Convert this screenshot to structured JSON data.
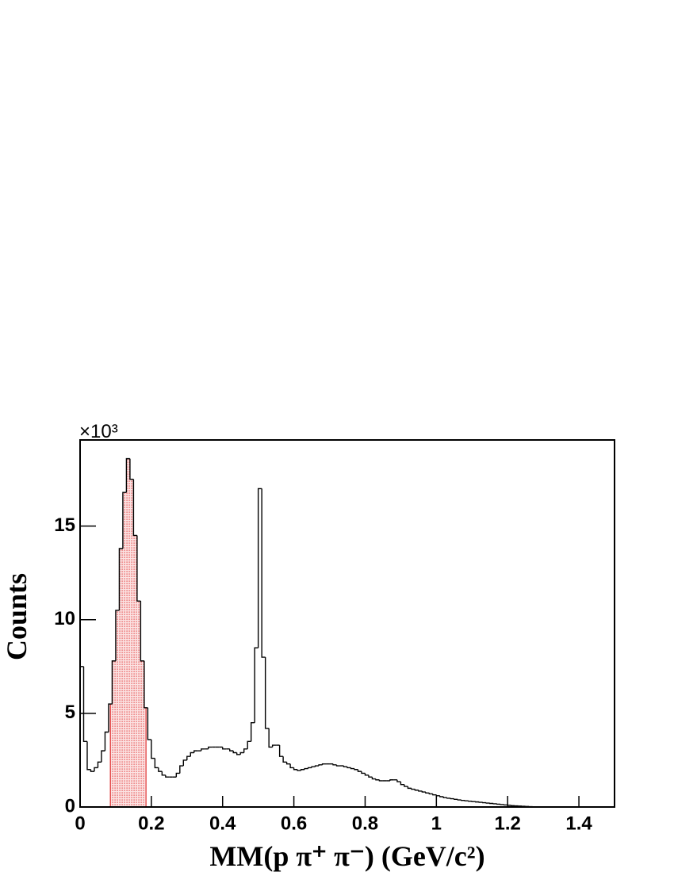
{
  "chart_data": {
    "type": "histogram",
    "x_label": "MM(p π⁺ π⁻) (GeV/c²)",
    "y_label": "Counts",
    "y_scale_label": "×10³",
    "color": "#000000",
    "shade_color": "#e03030",
    "shade_range": [
      0.085,
      0.185
    ],
    "xlim": [
      0,
      1.5
    ],
    "ylim": [
      0,
      19.6
    ],
    "xticks": [
      0,
      0.2,
      0.4,
      0.6,
      0.8,
      1,
      1.2,
      1.4
    ],
    "yticks": [
      0,
      5,
      10,
      15
    ],
    "bins": [
      0,
      0.01,
      0.02,
      0.03,
      0.04,
      0.05,
      0.06,
      0.07,
      0.08,
      0.09,
      0.1,
      0.11,
      0.12,
      0.13,
      0.14,
      0.15,
      0.16,
      0.17,
      0.18,
      0.19,
      0.2,
      0.21,
      0.22,
      0.23,
      0.24,
      0.25,
      0.26,
      0.27,
      0.28,
      0.29,
      0.3,
      0.31,
      0.32,
      0.33,
      0.34,
      0.35,
      0.36,
      0.37,
      0.38,
      0.39,
      0.4,
      0.41,
      0.42,
      0.43,
      0.44,
      0.45,
      0.46,
      0.47,
      0.48,
      0.49,
      0.5,
      0.51,
      0.52,
      0.53,
      0.54,
      0.55,
      0.56,
      0.57,
      0.58,
      0.59,
      0.6,
      0.61,
      0.62,
      0.63,
      0.64,
      0.65,
      0.66,
      0.67,
      0.68,
      0.69,
      0.7,
      0.71,
      0.72,
      0.73,
      0.74,
      0.75,
      0.76,
      0.77,
      0.78,
      0.79,
      0.8,
      0.81,
      0.82,
      0.83,
      0.84,
      0.85,
      0.86,
      0.87,
      0.88,
      0.89,
      0.9,
      0.91,
      0.92,
      0.93,
      0.94,
      0.95,
      0.96,
      0.97,
      0.98,
      0.99,
      1,
      1.01,
      1.02,
      1.03,
      1.04,
      1.05,
      1.06,
      1.07,
      1.08,
      1.09,
      1.1,
      1.11,
      1.12,
      1.13,
      1.14,
      1.15,
      1.16,
      1.17,
      1.18,
      1.19,
      1.2,
      1.21,
      1.22,
      1.23,
      1.24,
      1.25,
      1.26,
      1.27,
      1.28,
      1.29,
      1.3,
      1.31,
      1.32,
      1.33,
      1.34,
      1.35,
      1.36,
      1.37,
      1.38,
      1.39,
      1.4,
      1.41,
      1.42,
      1.43,
      1.44,
      1.45,
      1.46,
      1.47,
      1.48,
      1.49,
      1.5
    ],
    "values": [
      7.5,
      3.5,
      2.0,
      1.9,
      2.1,
      2.4,
      3.0,
      4.0,
      5.5,
      7.8,
      10.5,
      13.8,
      16.8,
      18.6,
      17.5,
      14.5,
      11.0,
      7.8,
      5.3,
      3.6,
      2.6,
      2.1,
      1.9,
      1.7,
      1.6,
      1.6,
      1.6,
      1.8,
      2.2,
      2.5,
      2.7,
      2.9,
      3.0,
      3.0,
      3.1,
      3.1,
      3.2,
      3.2,
      3.2,
      3.2,
      3.1,
      3.1,
      3.0,
      2.9,
      2.8,
      2.9,
      3.1,
      3.5,
      4.5,
      8.5,
      17.0,
      8.0,
      4.2,
      3.2,
      3.3,
      3.3,
      2.7,
      2.4,
      2.3,
      2.1,
      2.0,
      1.95,
      2.0,
      2.05,
      2.1,
      2.15,
      2.2,
      2.25,
      2.3,
      2.3,
      2.3,
      2.25,
      2.2,
      2.2,
      2.15,
      2.1,
      2.05,
      2.0,
      1.9,
      1.8,
      1.7,
      1.6,
      1.5,
      1.45,
      1.4,
      1.4,
      1.4,
      1.45,
      1.45,
      1.35,
      1.2,
      1.1,
      1.0,
      0.95,
      0.9,
      0.85,
      0.8,
      0.75,
      0.7,
      0.65,
      0.6,
      0.55,
      0.5,
      0.47,
      0.44,
      0.41,
      0.38,
      0.35,
      0.33,
      0.31,
      0.29,
      0.27,
      0.25,
      0.23,
      0.21,
      0.19,
      0.17,
      0.15,
      0.13,
      0.11,
      0.09,
      0.07,
      0.06,
      0.05,
      0.04,
      0.03,
      0.02,
      0.015,
      0.01,
      0.005,
      0,
      0,
      0,
      0,
      0,
      0,
      0,
      0,
      0,
      0,
      0,
      0,
      0,
      0,
      0,
      0,
      0,
      0,
      0,
      0
    ]
  }
}
